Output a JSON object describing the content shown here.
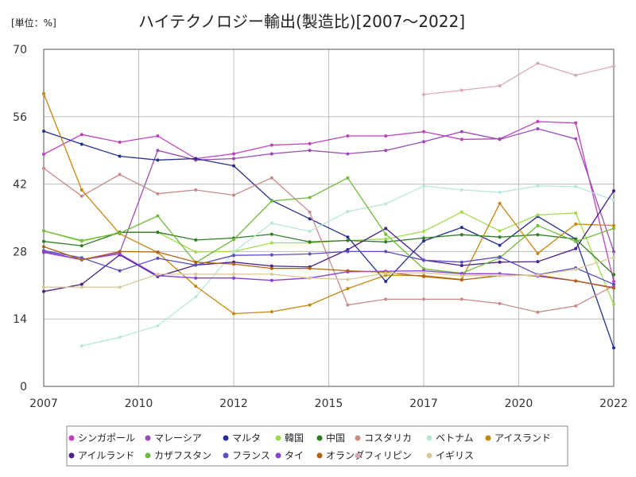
{
  "chart_data": {
    "type": "line",
    "title": "ハイテクノロジー輸出(製造比)[2007～2022]",
    "unit_label": "[単位：%]",
    "xlim": [
      2007,
      2022
    ],
    "ylim": [
      0,
      70
    ],
    "grid": true,
    "legend_position": "bottom",
    "x_tick_labels": [
      "2007",
      "2010",
      "2012",
      "2015",
      "2017",
      "2020",
      "2022"
    ],
    "y_tick_labels": [
      "0",
      "14",
      "28",
      "42",
      "56",
      "70"
    ],
    "x": [
      2007,
      2008,
      2009,
      2010,
      2011,
      2012,
      2013,
      2014,
      2015,
      2016,
      2017,
      2018,
      2019,
      2020,
      2021,
      2022
    ],
    "series": [
      {
        "name": "シンガポール",
        "color": "#c03fbf",
        "values": [
          48.2,
          52.3,
          50.7,
          52.0,
          47.3,
          48.3,
          50.1,
          50.4,
          52.0,
          52.0,
          52.9,
          51.3,
          51.4,
          55.0,
          54.7,
          21.8
        ]
      },
      {
        "name": "マレーシア",
        "color": "#9a4bb5",
        "values": [
          27.8,
          26.3,
          27.8,
          49.0,
          47.0,
          47.3,
          48.3,
          49.0,
          48.3,
          49.0,
          50.8,
          52.9,
          51.3,
          53.5,
          51.4,
          28.0
        ]
      },
      {
        "name": "マルタ",
        "color": "#25308f",
        "values": [
          53.0,
          50.3,
          47.8,
          47.0,
          47.3,
          45.8,
          38.6,
          34.8,
          31.0,
          21.8,
          30.2,
          33.0,
          29.3,
          35.3,
          30.6,
          8.0
        ]
      },
      {
        "name": "韓国",
        "color": "#9fdc4c",
        "values": [
          32.3,
          30.1,
          32.0,
          32.0,
          27.9,
          28.0,
          29.8,
          29.8,
          30.3,
          30.6,
          32.2,
          36.2,
          32.3,
          35.6,
          36.0,
          17.0
        ]
      },
      {
        "name": "中国",
        "color": "#2f7d23",
        "values": [
          30.1,
          29.2,
          32.0,
          32.0,
          30.4,
          30.8,
          31.6,
          30.0,
          30.3,
          30.0,
          30.8,
          31.5,
          31.0,
          31.5,
          30.6,
          23.2
        ]
      },
      {
        "name": "コスタリカ",
        "color": "#c98a8a",
        "values": [
          45.3,
          39.5,
          44.0,
          40.0,
          40.8,
          39.7,
          43.3,
          36.2,
          16.9,
          18.1,
          18.1,
          18.1,
          17.2,
          15.4,
          16.7,
          20.9
        ]
      },
      {
        "name": "ベトナム",
        "color": "#b7e8d2",
        "values": [
          null,
          8.4,
          10.2,
          12.6,
          18.6,
          27.9,
          33.9,
          32.2,
          36.3,
          37.9,
          41.6,
          40.8,
          40.3,
          41.6,
          41.5,
          38.7
        ]
      },
      {
        "name": "アイスランド",
        "color": "#c8860b",
        "values": [
          60.8,
          40.8,
          31.7,
          27.8,
          20.8,
          15.1,
          15.5,
          16.9,
          20.3,
          23.1,
          23.0,
          22.2,
          38.0,
          27.6,
          33.7,
          33.4
        ]
      },
      {
        "name": "アイルランド",
        "color": "#4a1f8a",
        "values": [
          19.7,
          21.2,
          27.3,
          22.8,
          25.2,
          25.8,
          25.0,
          24.8,
          28.4,
          32.8,
          26.2,
          25.1,
          25.8,
          25.9,
          28.6,
          40.6
        ]
      },
      {
        "name": "カザフスタン",
        "color": "#6fbb3b",
        "values": [
          32.3,
          30.3,
          31.8,
          35.4,
          25.7,
          30.5,
          38.5,
          39.2,
          43.3,
          31.6,
          24.4,
          23.5,
          26.7,
          33.4,
          30.1,
          32.8
        ]
      },
      {
        "name": "フランス",
        "color": "#5a4ec7",
        "values": [
          28.2,
          26.7,
          24.0,
          26.6,
          25.2,
          27.2,
          27.3,
          27.5,
          28.0,
          28.0,
          26.2,
          25.8,
          26.9,
          23.2,
          24.6,
          21.2
        ]
      },
      {
        "name": "タイ",
        "color": "#8a3fd9",
        "values": [
          28.0,
          26.3,
          27.5,
          23.0,
          22.5,
          22.5,
          22.0,
          22.5,
          23.8,
          23.9,
          24.0,
          23.4,
          23.4,
          22.9,
          21.9,
          20.5
        ]
      },
      {
        "name": "オランダ",
        "color": "#b5600d",
        "values": [
          29.0,
          26.3,
          28.0,
          27.9,
          25.8,
          25.4,
          24.5,
          24.5,
          24.0,
          23.7,
          22.8,
          22.1,
          23.0,
          23.1,
          21.9,
          20.4
        ]
      },
      {
        "name": "フィリピン",
        "color": "#d9aab5",
        "values": [
          null,
          null,
          null,
          null,
          null,
          null,
          null,
          null,
          null,
          null,
          60.6,
          61.5,
          62.4,
          67.1,
          64.6,
          66.5
        ]
      },
      {
        "name": "イギリス",
        "color": "#d9c99a",
        "values": [
          20.6,
          20.6,
          20.6,
          23.3,
          23.3,
          23.3,
          23.3,
          22.5,
          22.2,
          23.5,
          23.6,
          23.0,
          23.0,
          23.1,
          24.3,
          26.8
        ]
      }
    ]
  }
}
